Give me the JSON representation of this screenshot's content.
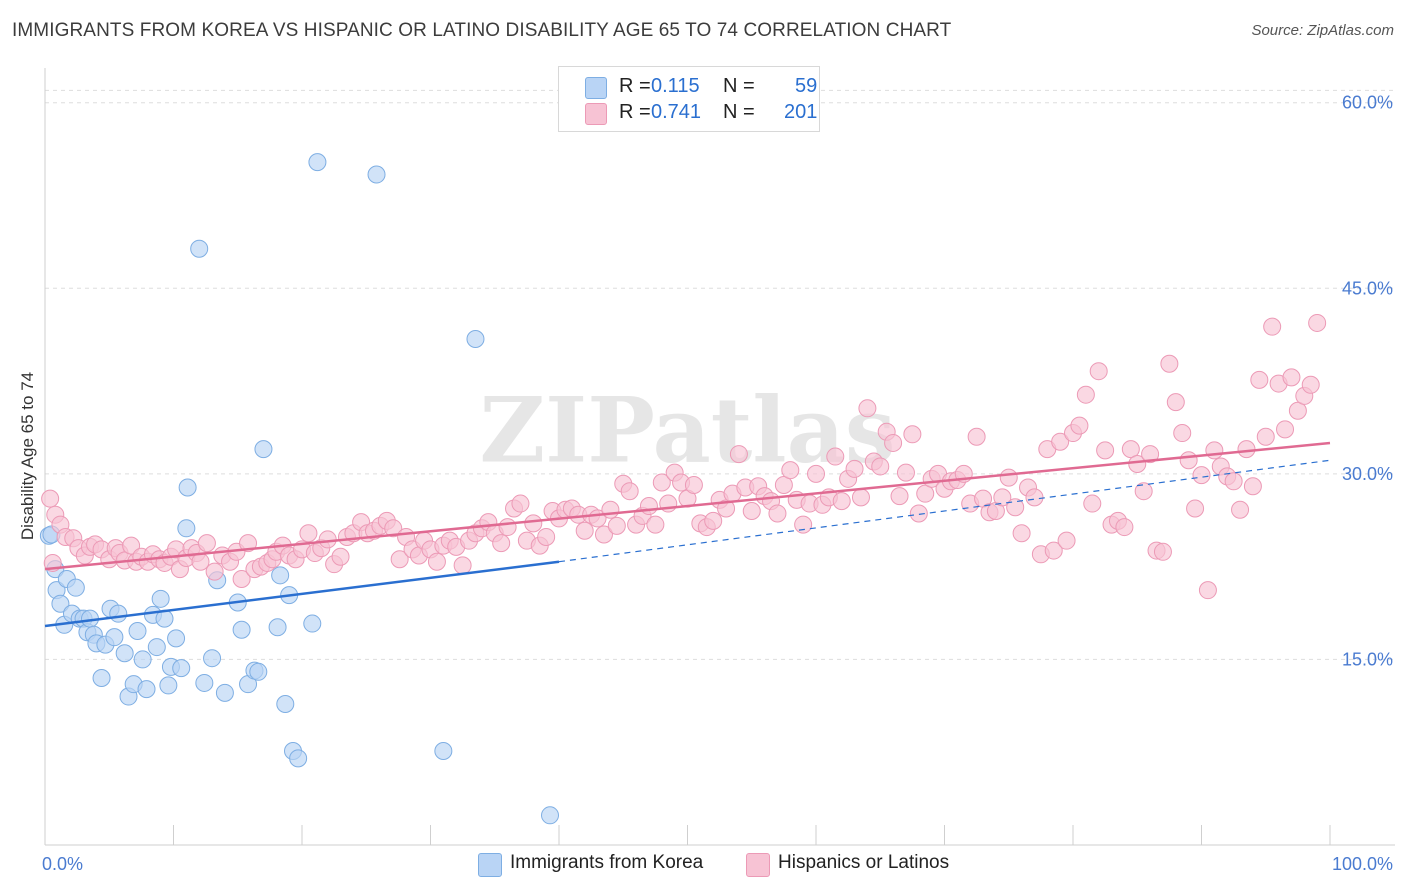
{
  "title": "IMMIGRANTS FROM KOREA VS HISPANIC OR LATINO DISABILITY AGE 65 TO 74 CORRELATION CHART",
  "source": "Source: ZipAtlas.com",
  "watermark": "ZIPatlas",
  "legend": {
    "rows": [
      {
        "r_label": "R =",
        "r_value": "0.115",
        "n_label": "N =",
        "n_value": "59"
      },
      {
        "r_label": "R =",
        "r_value": "0.741",
        "n_label": "N =",
        "n_value": "201"
      }
    ]
  },
  "bottom_legend": [
    "Immigrants from Korea",
    "Hispanics or Latinos"
  ],
  "colors": {
    "korea_fill": "#b9d4f5",
    "korea_stroke": "#7eaee3",
    "korea_line": "#2a6fd0",
    "latino_fill": "#f7c3d4",
    "latino_stroke": "#ec9ab6",
    "latino_line": "#e06a92",
    "tick_label": "#4a7bd0",
    "grid": "#dddddd"
  },
  "chart_data": {
    "type": "scatter",
    "title": "IMMIGRANTS FROM KOREA VS HISPANIC OR LATINO DISABILITY AGE 65 TO 74 CORRELATION CHART",
    "xlabel": "",
    "ylabel": "Disability Age 65 to 74",
    "xlim": [
      0,
      100
    ],
    "ylim": [
      0,
      62
    ],
    "x_tick_labels": [
      {
        "value": 0,
        "label": "0.0%"
      },
      {
        "value": 100,
        "label": "100.0%"
      }
    ],
    "y_ticks": [
      {
        "value": 15,
        "label": "15.0%"
      },
      {
        "value": 30,
        "label": "30.0%"
      },
      {
        "value": 45,
        "label": "45.0%"
      },
      {
        "value": 60,
        "label": "60.0%"
      }
    ],
    "grid": true,
    "legend_position": "top-center",
    "series": [
      {
        "name": "Immigrants from Korea",
        "r": 0.115,
        "n": 59,
        "trend": {
          "x0": 0,
          "y0": 17.7,
          "x1": 40,
          "y1": 22.9,
          "dash_to_x": 100,
          "dash_to_y": 31.1
        },
        "points": [
          [
            0.3,
            25.0
          ],
          [
            0.8,
            22.3
          ],
          [
            0.9,
            20.6
          ],
          [
            1.2,
            19.5
          ],
          [
            1.5,
            17.8
          ],
          [
            1.7,
            21.5
          ],
          [
            2.1,
            18.7
          ],
          [
            2.4,
            20.8
          ],
          [
            2.7,
            18.3
          ],
          [
            3.0,
            18.3
          ],
          [
            3.3,
            17.2
          ],
          [
            3.5,
            18.3
          ],
          [
            3.8,
            17.0
          ],
          [
            4.0,
            16.3
          ],
          [
            4.4,
            13.5
          ],
          [
            4.7,
            16.2
          ],
          [
            5.1,
            19.1
          ],
          [
            5.4,
            16.8
          ],
          [
            5.7,
            18.7
          ],
          [
            6.2,
            15.5
          ],
          [
            6.5,
            12.0
          ],
          [
            6.9,
            13.0
          ],
          [
            7.2,
            17.3
          ],
          [
            7.6,
            15.0
          ],
          [
            7.9,
            12.6
          ],
          [
            8.4,
            18.6
          ],
          [
            8.7,
            16.0
          ],
          [
            9.0,
            19.9
          ],
          [
            9.3,
            18.3
          ],
          [
            9.6,
            12.9
          ],
          [
            9.8,
            14.4
          ],
          [
            10.2,
            16.7
          ],
          [
            10.6,
            14.3
          ],
          [
            11.1,
            28.9
          ],
          [
            11.0,
            25.6
          ],
          [
            12.0,
            48.2
          ],
          [
            12.4,
            13.1
          ],
          [
            13.0,
            15.1
          ],
          [
            13.4,
            21.4
          ],
          [
            14.0,
            12.3
          ],
          [
            15.0,
            19.6
          ],
          [
            15.3,
            17.4
          ],
          [
            15.8,
            13.0
          ],
          [
            16.3,
            14.1
          ],
          [
            16.6,
            14.0
          ],
          [
            17.0,
            32.0
          ],
          [
            18.1,
            17.6
          ],
          [
            18.3,
            21.8
          ],
          [
            18.7,
            11.4
          ],
          [
            19.0,
            20.2
          ],
          [
            19.3,
            7.6
          ],
          [
            19.7,
            7.0
          ],
          [
            20.8,
            17.9
          ],
          [
            21.2,
            55.2
          ],
          [
            25.8,
            54.2
          ],
          [
            31.0,
            7.6
          ],
          [
            33.5,
            40.9
          ],
          [
            39.3,
            2.4
          ],
          [
            0.5,
            25.1
          ]
        ]
      },
      {
        "name": "Hispanics or Latinos",
        "r": 0.741,
        "n": 201,
        "trend": {
          "x0": 0,
          "y0": 22.3,
          "x1": 100,
          "y1": 32.5
        },
        "points": [
          [
            0.4,
            28.0
          ],
          [
            0.8,
            26.7
          ],
          [
            1.2,
            25.9
          ],
          [
            1.6,
            24.9
          ],
          [
            2.2,
            24.8
          ],
          [
            2.6,
            24.0
          ],
          [
            3.1,
            23.4
          ],
          [
            3.5,
            24.1
          ],
          [
            3.9,
            24.3
          ],
          [
            4.4,
            23.9
          ],
          [
            5.0,
            23.1
          ],
          [
            5.5,
            24.0
          ],
          [
            5.8,
            23.6
          ],
          [
            6.2,
            23.0
          ],
          [
            6.7,
            24.2
          ],
          [
            7.1,
            22.9
          ],
          [
            7.5,
            23.3
          ],
          [
            8.0,
            22.9
          ],
          [
            8.4,
            23.5
          ],
          [
            8.9,
            23.1
          ],
          [
            9.3,
            22.8
          ],
          [
            9.8,
            23.3
          ],
          [
            10.2,
            23.9
          ],
          [
            10.5,
            22.3
          ],
          [
            11.0,
            23.2
          ],
          [
            11.4,
            24.0
          ],
          [
            11.8,
            23.6
          ],
          [
            12.1,
            22.9
          ],
          [
            12.6,
            24.4
          ],
          [
            13.2,
            22.1
          ],
          [
            13.8,
            23.4
          ],
          [
            14.4,
            22.9
          ],
          [
            14.9,
            23.7
          ],
          [
            15.3,
            21.5
          ],
          [
            15.8,
            24.4
          ],
          [
            16.3,
            22.3
          ],
          [
            16.8,
            22.5
          ],
          [
            17.3,
            22.8
          ],
          [
            17.7,
            23.1
          ],
          [
            18.0,
            23.7
          ],
          [
            18.5,
            24.2
          ],
          [
            19.0,
            23.4
          ],
          [
            19.5,
            23.1
          ],
          [
            20.0,
            23.9
          ],
          [
            20.5,
            25.2
          ],
          [
            21.0,
            23.6
          ],
          [
            21.5,
            24.0
          ],
          [
            22.0,
            24.7
          ],
          [
            22.5,
            22.7
          ],
          [
            23.0,
            23.3
          ],
          [
            23.5,
            24.9
          ],
          [
            24.0,
            25.2
          ],
          [
            24.6,
            26.1
          ],
          [
            25.1,
            25.2
          ],
          [
            25.6,
            25.4
          ],
          [
            26.1,
            25.8
          ],
          [
            26.6,
            26.2
          ],
          [
            27.1,
            25.6
          ],
          [
            27.6,
            23.1
          ],
          [
            28.1,
            24.9
          ],
          [
            28.6,
            23.9
          ],
          [
            29.1,
            23.4
          ],
          [
            29.5,
            24.6
          ],
          [
            30.0,
            23.9
          ],
          [
            30.5,
            22.9
          ],
          [
            31.0,
            24.2
          ],
          [
            31.5,
            24.6
          ],
          [
            32.0,
            24.1
          ],
          [
            32.5,
            22.6
          ],
          [
            33.0,
            24.6
          ],
          [
            33.5,
            25.2
          ],
          [
            34.0,
            25.6
          ],
          [
            34.5,
            26.1
          ],
          [
            35.0,
            25.2
          ],
          [
            35.5,
            24.4
          ],
          [
            36.0,
            25.7
          ],
          [
            36.5,
            27.2
          ],
          [
            37.0,
            27.6
          ],
          [
            37.5,
            24.6
          ],
          [
            38.0,
            26.0
          ],
          [
            38.5,
            24.2
          ],
          [
            39.0,
            24.9
          ],
          [
            39.5,
            27.0
          ],
          [
            40.0,
            26.4
          ],
          [
            40.5,
            27.1
          ],
          [
            41.0,
            27.2
          ],
          [
            41.5,
            26.7
          ],
          [
            42.0,
            25.4
          ],
          [
            42.5,
            26.7
          ],
          [
            43.0,
            26.4
          ],
          [
            43.5,
            25.1
          ],
          [
            44.0,
            27.1
          ],
          [
            44.5,
            25.8
          ],
          [
            45.0,
            29.2
          ],
          [
            45.5,
            28.6
          ],
          [
            46.0,
            25.9
          ],
          [
            46.5,
            26.6
          ],
          [
            47.0,
            27.4
          ],
          [
            47.5,
            25.9
          ],
          [
            48.0,
            29.3
          ],
          [
            48.5,
            27.6
          ],
          [
            49.0,
            30.1
          ],
          [
            49.5,
            29.3
          ],
          [
            50.0,
            28.0
          ],
          [
            50.5,
            29.1
          ],
          [
            51.0,
            26.0
          ],
          [
            51.5,
            25.7
          ],
          [
            52.0,
            26.2
          ],
          [
            52.5,
            27.9
          ],
          [
            53.0,
            27.2
          ],
          [
            53.5,
            28.4
          ],
          [
            54.0,
            31.6
          ],
          [
            54.5,
            28.9
          ],
          [
            55.0,
            27.0
          ],
          [
            55.5,
            29.0
          ],
          [
            56.0,
            28.2
          ],
          [
            56.5,
            27.8
          ],
          [
            57.0,
            26.8
          ],
          [
            57.5,
            29.1
          ],
          [
            58.0,
            30.3
          ],
          [
            58.5,
            27.9
          ],
          [
            59.0,
            25.9
          ],
          [
            59.5,
            27.6
          ],
          [
            60.0,
            30.0
          ],
          [
            60.5,
            27.5
          ],
          [
            61.0,
            28.1
          ],
          [
            61.5,
            31.4
          ],
          [
            62.0,
            27.8
          ],
          [
            62.5,
            29.6
          ],
          [
            63.0,
            30.4
          ],
          [
            63.5,
            28.1
          ],
          [
            64.0,
            35.3
          ],
          [
            64.5,
            31.0
          ],
          [
            65.0,
            30.6
          ],
          [
            65.5,
            33.4
          ],
          [
            66.0,
            32.5
          ],
          [
            66.5,
            28.2
          ],
          [
            67.0,
            30.1
          ],
          [
            67.5,
            33.2
          ],
          [
            68.0,
            26.8
          ],
          [
            68.5,
            28.4
          ],
          [
            69.0,
            29.6
          ],
          [
            69.5,
            30.0
          ],
          [
            70.0,
            28.8
          ],
          [
            70.5,
            29.4
          ],
          [
            71.0,
            29.5
          ],
          [
            71.5,
            30.0
          ],
          [
            72.0,
            27.6
          ],
          [
            72.5,
            33.0
          ],
          [
            73.0,
            28.0
          ],
          [
            73.5,
            26.9
          ],
          [
            74.0,
            27.0
          ],
          [
            74.5,
            28.1
          ],
          [
            75.0,
            29.7
          ],
          [
            75.5,
            27.3
          ],
          [
            76.0,
            25.2
          ],
          [
            76.5,
            28.9
          ],
          [
            77.0,
            28.1
          ],
          [
            77.5,
            23.5
          ],
          [
            78.0,
            32.0
          ],
          [
            78.5,
            23.8
          ],
          [
            79.0,
            32.6
          ],
          [
            79.5,
            24.6
          ],
          [
            80.0,
            33.3
          ],
          [
            80.5,
            33.9
          ],
          [
            81.0,
            36.4
          ],
          [
            81.5,
            27.6
          ],
          [
            82.0,
            38.3
          ],
          [
            82.5,
            31.9
          ],
          [
            83.0,
            25.9
          ],
          [
            83.5,
            26.2
          ],
          [
            84.0,
            25.7
          ],
          [
            84.5,
            32.0
          ],
          [
            85.0,
            30.8
          ],
          [
            85.5,
            28.6
          ],
          [
            86.0,
            31.6
          ],
          [
            86.5,
            23.8
          ],
          [
            87.0,
            23.7
          ],
          [
            87.5,
            38.9
          ],
          [
            88.0,
            35.8
          ],
          [
            88.5,
            33.3
          ],
          [
            89.0,
            31.1
          ],
          [
            89.5,
            27.2
          ],
          [
            90.0,
            29.9
          ],
          [
            90.5,
            20.6
          ],
          [
            91.0,
            31.9
          ],
          [
            91.5,
            30.6
          ],
          [
            92.0,
            29.8
          ],
          [
            92.5,
            29.4
          ],
          [
            93.0,
            27.1
          ],
          [
            93.5,
            32.0
          ],
          [
            94.0,
            29.0
          ],
          [
            94.5,
            37.6
          ],
          [
            95.0,
            33.0
          ],
          [
            95.5,
            41.9
          ],
          [
            96.0,
            37.3
          ],
          [
            96.5,
            33.6
          ],
          [
            97.0,
            37.8
          ],
          [
            97.5,
            35.1
          ],
          [
            98.0,
            36.3
          ],
          [
            98.5,
            37.2
          ],
          [
            99.0,
            42.2
          ],
          [
            0.6,
            22.8
          ]
        ]
      }
    ]
  }
}
